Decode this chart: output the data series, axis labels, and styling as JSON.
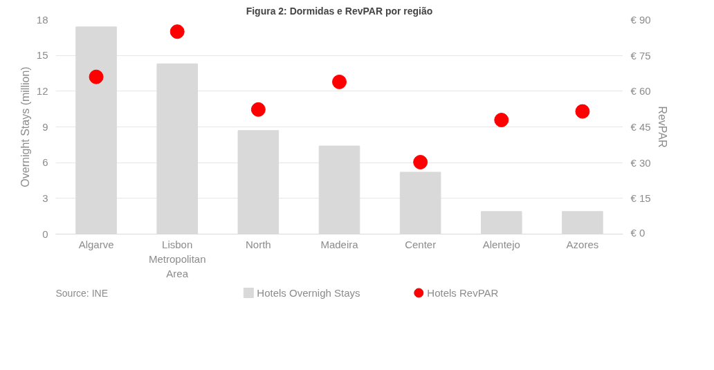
{
  "chart_data": {
    "type": "bar",
    "title": "Figura 2: Dormidas e RevPAR por região",
    "categories": [
      "Algarve",
      "Lisbon Metropolitan Area",
      "North",
      "Madeira",
      "Center",
      "Alentejo",
      "Azores"
    ],
    "series": [
      {
        "name": "Hotels Overnigh Stays",
        "type": "bar",
        "color": "#d9d9d9",
        "values": [
          17.4,
          14.3,
          8.7,
          7.4,
          5.2,
          1.9,
          1.9
        ]
      },
      {
        "name": "Hotels RevPAR",
        "type": "scatter",
        "axis": "y2",
        "color": "#ff0000",
        "values": [
          66,
          85,
          52.3,
          63.9,
          30.2,
          47.9,
          51.5
        ]
      }
    ],
    "ylabel": "Overnight Stays (million)",
    "y2label": "RevPAR",
    "ylim": [
      0,
      18
    ],
    "yticks": [
      0,
      3,
      6,
      9,
      12,
      15,
      18
    ],
    "y2lim": [
      0,
      90
    ],
    "y2ticks": [
      {
        "value": 0,
        "label": "€ 0"
      },
      {
        "value": 15,
        "label": "€ 15"
      },
      {
        "value": 30,
        "label": "€ 30"
      },
      {
        "value": 45,
        "label": "€ 45"
      },
      {
        "value": 60,
        "label": "€ 60"
      },
      {
        "value": 75,
        "label": "€ 75"
      },
      {
        "value": 90,
        "label": "€ 90"
      }
    ],
    "grid": "y",
    "legend": "bottom",
    "marker": "circle",
    "annotations": [
      "Source: INE"
    ]
  }
}
